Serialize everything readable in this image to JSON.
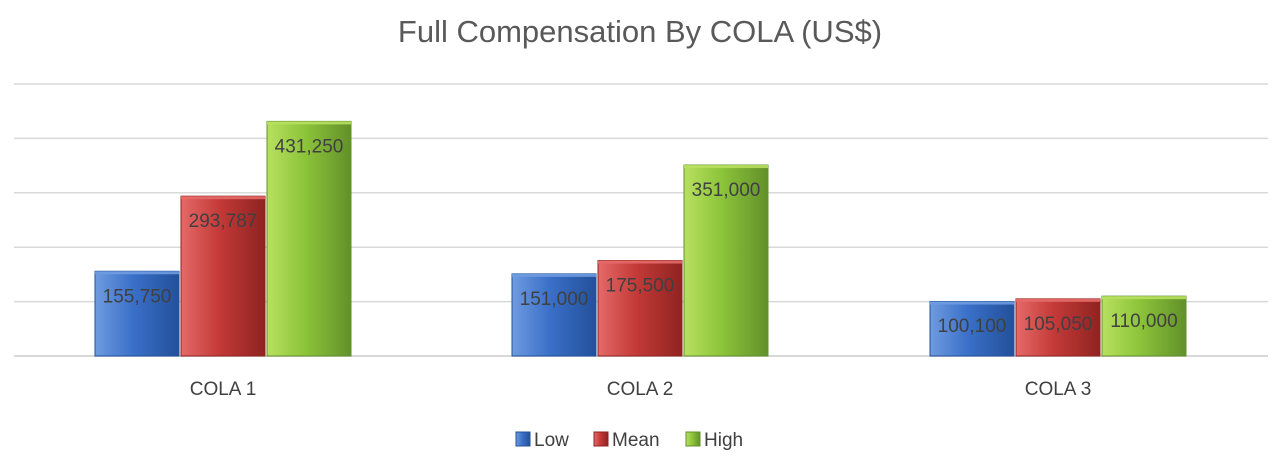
{
  "chart_data": {
    "type": "bar",
    "title": "Full Compensation By COLA  (US$)",
    "xlabel": "",
    "ylabel": "",
    "categories": [
      "COLA 1",
      "COLA 2",
      "COLA 3"
    ],
    "series": [
      {
        "name": "Low",
        "values": [
          155750,
          151000,
          100100
        ],
        "labels": [
          "155,750",
          "151,000",
          "100,100"
        ]
      },
      {
        "name": "Mean",
        "values": [
          293787,
          175500,
          105050
        ],
        "labels": [
          "293,787",
          "175,500",
          "105,050"
        ]
      },
      {
        "name": "High",
        "values": [
          431250,
          351000,
          110000
        ],
        "labels": [
          "431,250",
          "351,000",
          "110,000"
        ]
      }
    ],
    "ylim": [
      0,
      500000
    ],
    "y_axis_labels_visible": false,
    "grid": true,
    "legend_position": "bottom",
    "colors": {
      "Low": {
        "light": "#6f9be0",
        "base": "#3a70c8",
        "dark": "#23509a"
      },
      "Mean": {
        "light": "#e46a68",
        "base": "#c43a38",
        "dark": "#8f2321"
      },
      "High": {
        "light": "#b8e060",
        "base": "#8cc43a",
        "dark": "#62902a"
      },
      "grid": "#d9d9d9",
      "text": "#404040",
      "title": "#595959"
    }
  }
}
